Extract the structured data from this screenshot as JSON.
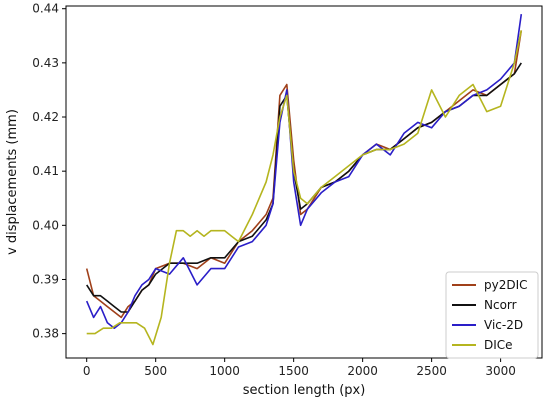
{
  "chart_data": {
    "type": "line",
    "xlabel": "section length (px)",
    "ylabel": "v displacements (mm)",
    "xlim": [
      -150,
      3300
    ],
    "ylim": [
      0.3755,
      0.4405
    ],
    "xticks": [
      0,
      500,
      1000,
      1500,
      2000,
      2500,
      3000
    ],
    "yticks": [
      0.38,
      0.39,
      0.4,
      0.41,
      0.42,
      0.43,
      0.44
    ],
    "ytick_labels": [
      "0.38",
      "0.39",
      "0.40",
      "0.41",
      "0.42",
      "0.43",
      "0.44"
    ],
    "grid": false,
    "legend_position": "bottom-right",
    "series": [
      {
        "name": "py2DIC",
        "color": "#a0401a",
        "x": [
          0,
          50,
          100,
          150,
          200,
          250,
          300,
          350,
          400,
          450,
          500,
          600,
          700,
          800,
          900,
          1000,
          1100,
          1200,
          1300,
          1350,
          1400,
          1450,
          1500,
          1550,
          1600,
          1700,
          1800,
          1900,
          2000,
          2100,
          2200,
          2300,
          2400,
          2500,
          2600,
          2700,
          2800,
          2900,
          3000,
          3100,
          3150
        ],
        "y": [
          0.392,
          0.387,
          0.386,
          0.385,
          0.384,
          0.383,
          0.385,
          0.386,
          0.388,
          0.389,
          0.392,
          0.393,
          0.393,
          0.392,
          0.394,
          0.393,
          0.397,
          0.399,
          0.402,
          0.405,
          0.424,
          0.426,
          0.412,
          0.402,
          0.403,
          0.407,
          0.408,
          0.41,
          0.413,
          0.415,
          0.414,
          0.416,
          0.418,
          0.419,
          0.421,
          0.423,
          0.425,
          0.424,
          0.426,
          0.428,
          0.436
        ]
      },
      {
        "name": "Ncorr",
        "color": "#111111",
        "x": [
          0,
          50,
          100,
          150,
          200,
          250,
          300,
          350,
          400,
          450,
          500,
          600,
          700,
          800,
          900,
          1000,
          1100,
          1200,
          1300,
          1350,
          1400,
          1450,
          1500,
          1550,
          1600,
          1700,
          1800,
          1900,
          2000,
          2100,
          2200,
          2300,
          2400,
          2500,
          2600,
          2700,
          2800,
          2900,
          3000,
          3100,
          3150
        ],
        "y": [
          0.389,
          0.387,
          0.387,
          0.386,
          0.385,
          0.384,
          0.384,
          0.386,
          0.388,
          0.389,
          0.391,
          0.393,
          0.393,
          0.393,
          0.394,
          0.394,
          0.397,
          0.398,
          0.401,
          0.404,
          0.422,
          0.424,
          0.41,
          0.403,
          0.404,
          0.407,
          0.408,
          0.41,
          0.413,
          0.414,
          0.414,
          0.416,
          0.418,
          0.419,
          0.421,
          0.422,
          0.424,
          0.424,
          0.426,
          0.428,
          0.43
        ]
      },
      {
        "name": "Vic-2D",
        "color": "#2a1ec8",
        "x": [
          0,
          50,
          100,
          150,
          200,
          250,
          300,
          350,
          400,
          450,
          500,
          600,
          700,
          800,
          900,
          1000,
          1100,
          1200,
          1300,
          1350,
          1400,
          1450,
          1500,
          1550,
          1600,
          1700,
          1800,
          1900,
          2000,
          2100,
          2200,
          2300,
          2400,
          2500,
          2600,
          2700,
          2800,
          2900,
          3000,
          3100,
          3150
        ],
        "y": [
          0.386,
          0.383,
          0.385,
          0.382,
          0.381,
          0.382,
          0.384,
          0.387,
          0.389,
          0.39,
          0.392,
          0.391,
          0.394,
          0.389,
          0.392,
          0.392,
          0.396,
          0.397,
          0.4,
          0.404,
          0.419,
          0.425,
          0.408,
          0.4,
          0.403,
          0.406,
          0.408,
          0.409,
          0.413,
          0.415,
          0.413,
          0.417,
          0.419,
          0.418,
          0.421,
          0.422,
          0.424,
          0.425,
          0.427,
          0.43,
          0.439
        ]
      },
      {
        "name": "DICe",
        "color": "#b5b51f",
        "x": [
          0,
          60,
          120,
          180,
          240,
          300,
          360,
          420,
          480,
          540,
          600,
          650,
          700,
          750,
          800,
          850,
          900,
          1000,
          1050,
          1100,
          1200,
          1300,
          1350,
          1400,
          1450,
          1500,
          1550,
          1600,
          1700,
          1800,
          1900,
          2000,
          2100,
          2200,
          2300,
          2400,
          2500,
          2600,
          2700,
          2800,
          2900,
          3000,
          3100,
          3150
        ],
        "y": [
          0.38,
          0.38,
          0.381,
          0.381,
          0.382,
          0.382,
          0.382,
          0.381,
          0.378,
          0.383,
          0.393,
          0.399,
          0.399,
          0.398,
          0.399,
          0.398,
          0.399,
          0.399,
          0.398,
          0.397,
          0.402,
          0.408,
          0.413,
          0.42,
          0.424,
          0.41,
          0.405,
          0.404,
          0.407,
          0.409,
          0.411,
          0.413,
          0.414,
          0.414,
          0.415,
          0.417,
          0.425,
          0.42,
          0.424,
          0.426,
          0.421,
          0.422,
          0.43,
          0.436
        ]
      }
    ]
  }
}
